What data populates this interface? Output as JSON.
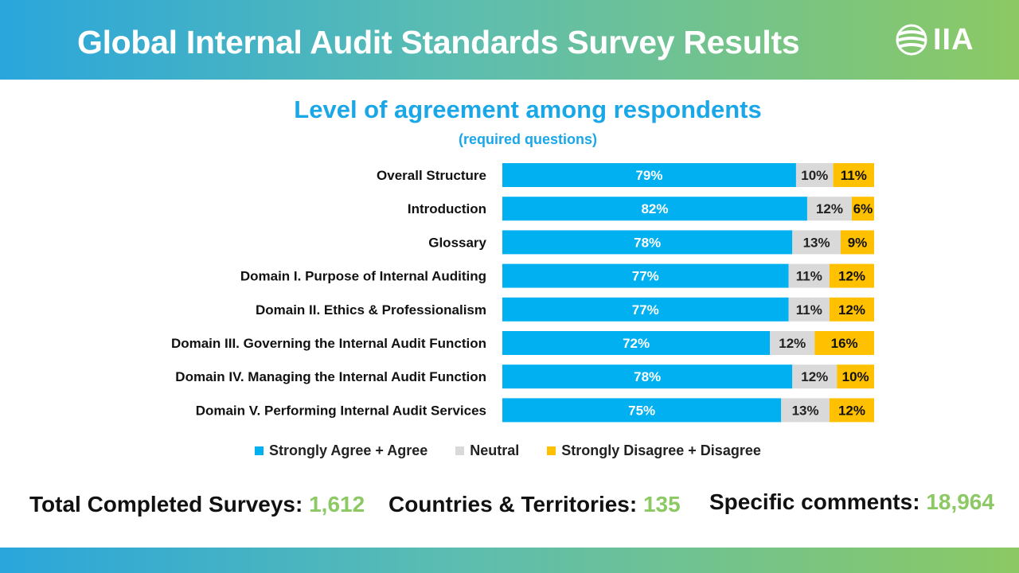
{
  "header": {
    "title": "Global Internal Audit Standards Survey Results",
    "logo_text": "IIA"
  },
  "colors": {
    "agree": "#00b0f0",
    "neutral": "#d9d9d9",
    "disagree": "#ffc000",
    "accent_green": "#8cc964",
    "title_blue": "#1aa7e8"
  },
  "chart_data": {
    "type": "bar",
    "orientation": "horizontal",
    "stacked": true,
    "title": "Level of agreement among respondents",
    "subtitle": "(required questions)",
    "categories": [
      "Overall Structure",
      "Introduction",
      "Glossary",
      "Domain I. Purpose of Internal Auditing",
      "Domain II. Ethics & Professionalism",
      "Domain III. Governing the Internal Audit Function",
      "Domain IV. Managing the Internal Audit Function",
      "Domain V. Performing Internal Audit Services"
    ],
    "series": [
      {
        "name": "Strongly Agree + Agree",
        "color": "#00b0f0",
        "values": [
          79,
          82,
          78,
          77,
          77,
          72,
          78,
          75
        ]
      },
      {
        "name": "Neutral",
        "color": "#d9d9d9",
        "values": [
          10,
          12,
          13,
          11,
          11,
          12,
          12,
          13
        ]
      },
      {
        "name": "Strongly Disagree + Disagree",
        "color": "#ffc000",
        "values": [
          11,
          6,
          9,
          12,
          12,
          16,
          10,
          12
        ]
      }
    ],
    "data_labels": [
      [
        "79%",
        "10%",
        "11%"
      ],
      [
        "82%",
        "12%",
        "6%"
      ],
      [
        "78%",
        "13%",
        "9%"
      ],
      [
        "77%",
        "11%",
        "12%"
      ],
      [
        "77%",
        "11%",
        "12%"
      ],
      [
        "72%",
        "12%",
        "16%"
      ],
      [
        "78%",
        "12%",
        "10%"
      ],
      [
        "75%",
        "13%",
        "12%"
      ]
    ],
    "legend_position": "bottom",
    "grid": false
  },
  "stats": [
    {
      "label": "Total Completed Surveys: ",
      "value": "1,612"
    },
    {
      "label": "Countries & Territories: ",
      "value": "135"
    },
    {
      "label": "Specific comments: ",
      "value": "18,964"
    }
  ]
}
